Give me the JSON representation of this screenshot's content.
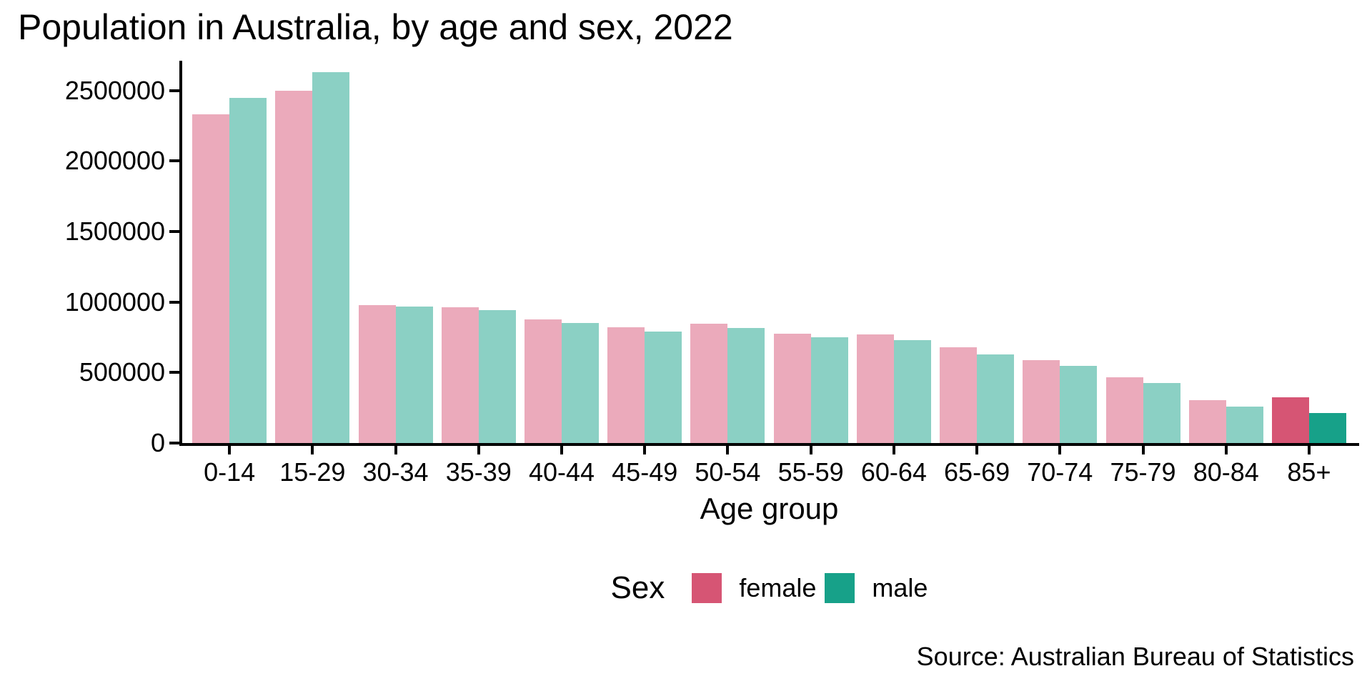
{
  "title": "Population in Australia, by age and sex, 2022",
  "source": "Source: Australian Bureau of Statistics",
  "chart_data": {
    "type": "bar",
    "title": "Population in Australia, by age and sex, 2022",
    "xlabel": "Age group",
    "ylabel": "",
    "categories": [
      "0-14",
      "15-29",
      "30-34",
      "35-39",
      "40-44",
      "45-49",
      "50-54",
      "55-59",
      "60-64",
      "65-69",
      "70-74",
      "75-79",
      "80-84",
      "85+"
    ],
    "series": [
      {
        "name": "female",
        "values": [
          2330000,
          2500000,
          980000,
          965000,
          878000,
          821000,
          847000,
          776000,
          771000,
          680000,
          588000,
          467000,
          304000,
          325000
        ]
      },
      {
        "name": "male",
        "values": [
          2450000,
          2630000,
          970000,
          945000,
          852000,
          791000,
          816000,
          750000,
          730000,
          629000,
          548000,
          426000,
          259000,
          213000
        ]
      }
    ],
    "ylim": [
      0,
      2712000
    ],
    "yticks": [
      0,
      500000,
      1000000,
      1500000,
      2000000,
      2500000
    ],
    "ytick_labels": [
      "0",
      "500000",
      "1000000",
      "1500000",
      "2000000",
      "2500000"
    ],
    "legend_title": "Sex",
    "legend_position": "bottom",
    "grid": false,
    "highlight_category": "85+",
    "colors": {
      "female": "#d65574",
      "male": "#17a189",
      "female_muted": "#ebaabb",
      "male_muted": "#8bd0c4",
      "axis": "#000000"
    }
  }
}
